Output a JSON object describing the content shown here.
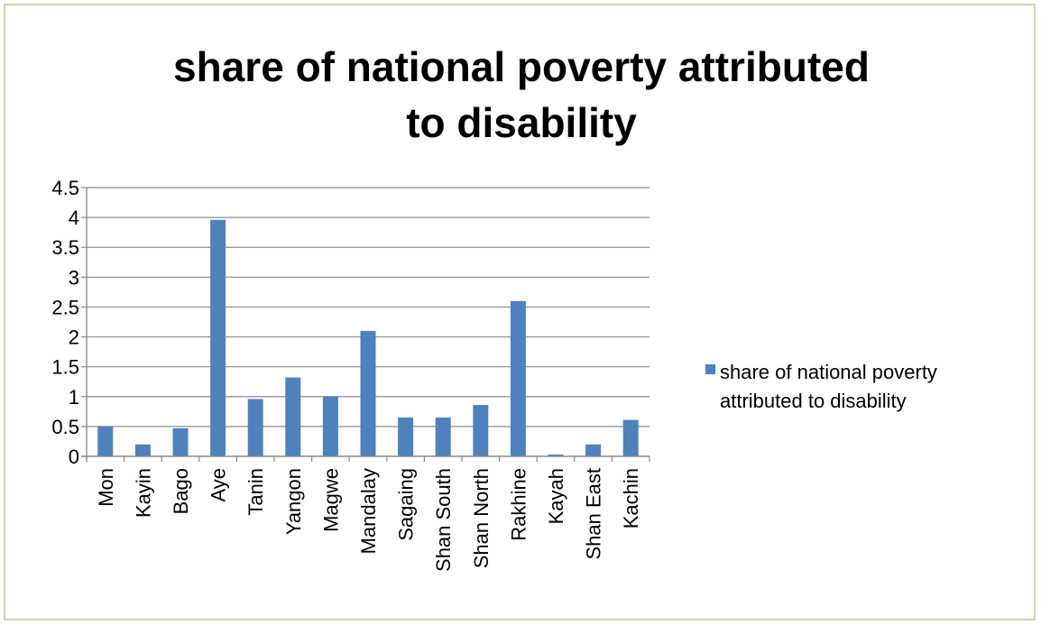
{
  "chart_data": {
    "type": "bar",
    "title_lines": [
      "share of national poverty attributed",
      "to disability"
    ],
    "categories": [
      "Mon",
      "Kayin",
      "Bago",
      "Aye",
      "Tanin",
      "Yangon",
      "Magwe",
      "Mandalay",
      "Sagaing",
      "Shan South",
      "Shan North",
      "Rakhine",
      "Kayah",
      "Shan East",
      "Kachin"
    ],
    "series": [
      {
        "name": "share of national poverty attributed to disability",
        "name_lines": [
          "share of national poverty",
          "attributed to disability"
        ],
        "color": "#4f81bd",
        "values": [
          0.5,
          0.2,
          0.47,
          3.96,
          0.96,
          1.32,
          1.0,
          2.1,
          0.65,
          0.65,
          0.86,
          2.6,
          0.03,
          0.2,
          0.61
        ]
      }
    ],
    "ylim": [
      0,
      4.5
    ],
    "yticks": [
      "0",
      "0.5",
      "1",
      "1.5",
      "2",
      "2.5",
      "3",
      "3.5",
      "4",
      "4.5"
    ],
    "grid": true,
    "legend": "right"
  }
}
